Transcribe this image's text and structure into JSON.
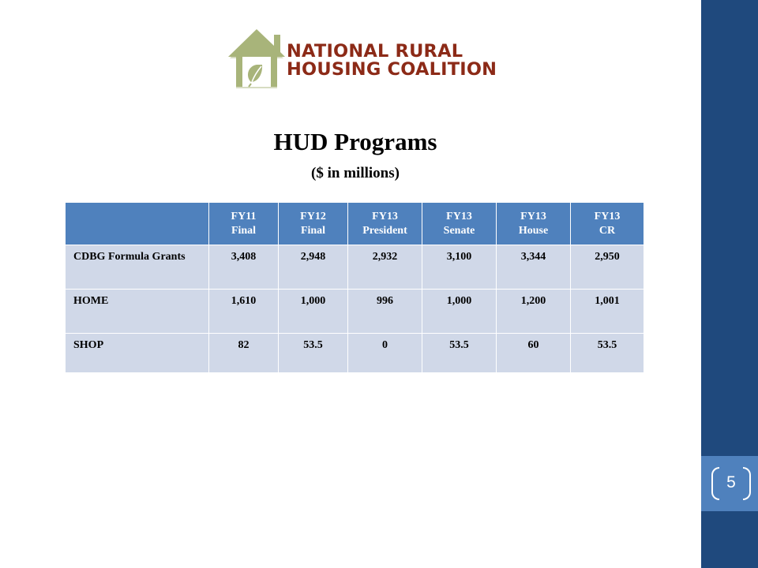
{
  "logo": {
    "line1": "NATIONAL RURAL",
    "line2": "HOUSING COALITION"
  },
  "title": "HUD Programs",
  "subtitle": "($ in millions)",
  "table": {
    "columns": [
      "",
      "FY11\nFinal",
      "FY12\nFinal",
      "FY13\nPresident",
      "FY13\nSenate",
      "FY13\nHouse",
      "FY13\nCR"
    ],
    "rows": [
      {
        "label": "CDBG Formula Grants",
        "values": [
          "3,408",
          "2,948",
          "2,932",
          "3,100",
          "3,344",
          "2,950"
        ]
      },
      {
        "label": "HOME",
        "values": [
          "1,610",
          "1,000",
          "996",
          "1,000",
          "1,200",
          "1,001"
        ]
      },
      {
        "label": "SHOP",
        "values": [
          "82",
          "53.5",
          "0",
          "53.5",
          "60",
          "53.5"
        ]
      }
    ]
  },
  "page_number": "5",
  "colors": {
    "sidebar": "#1f497d",
    "accent": "#4f81bd",
    "table_header": "#4f81bd",
    "table_cell": "#d0d8e8",
    "logo_text": "#8c2a17",
    "logo_house": "#a8b47a"
  }
}
